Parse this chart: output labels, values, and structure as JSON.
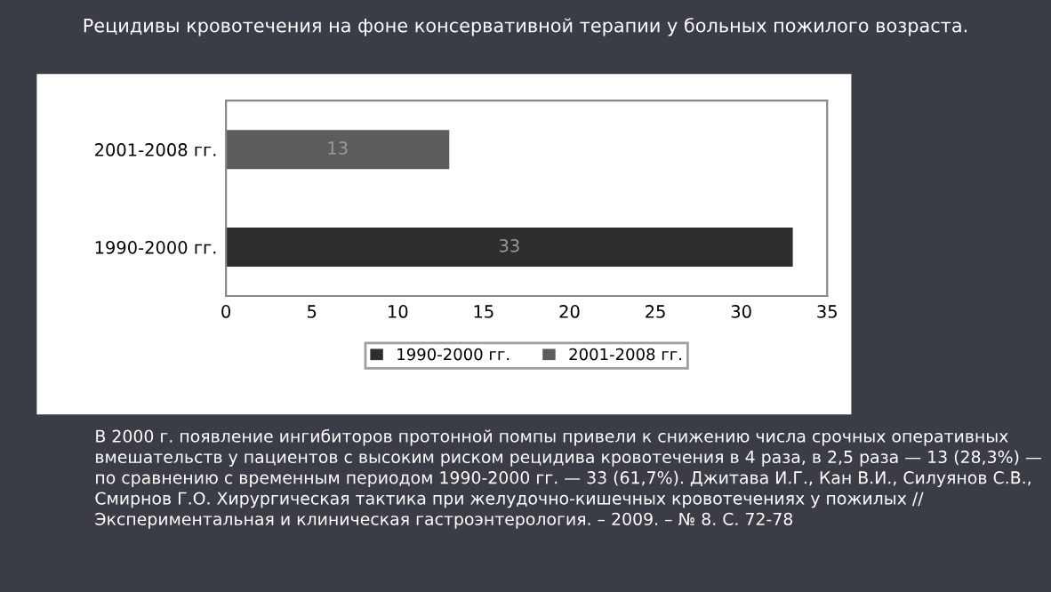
{
  "chart_data": {
    "type": "bar",
    "orientation": "horizontal",
    "title": "Рецидивы кровотечения на фоне консервативной терапии у больных пожилого возраста.",
    "categories": [
      "2001-2008 гг.",
      "1990-2000 гг."
    ],
    "series": [
      {
        "name": "1990-2000 гг.",
        "color": "#2e2e2e",
        "values": [
          null,
          33
        ]
      },
      {
        "name": "2001-2008 гг.",
        "color": "#5c5c5c",
        "values": [
          13,
          null
        ]
      }
    ],
    "xlim": [
      0,
      35
    ],
    "xticks": [
      0,
      5,
      10,
      15,
      20,
      25,
      30,
      35
    ],
    "data_labels": true,
    "legend": "bottom",
    "grid": false,
    "annotations": [
      "В 2000 г. появление ингибиторов протонной помпы привели к снижению числа срочных оперативных вмешательств у пациентов с высоким риском рецидива кровотечения в 4 раза, в 2,5 раза — 13 (28,3%) —  по сравнению с временным периодом 1990-2000 гг. — 33 (61,7%). Джитава И.Г., Кан В.И., Силуянов С.В., Смирнов Г.О. Хирургическая тактика при желудочно-кишечных кровотечениях у пожилых // Экспериментальная и клиническая гастроэнтерология. – 2009. – № 8. С. 72-78"
    ]
  }
}
